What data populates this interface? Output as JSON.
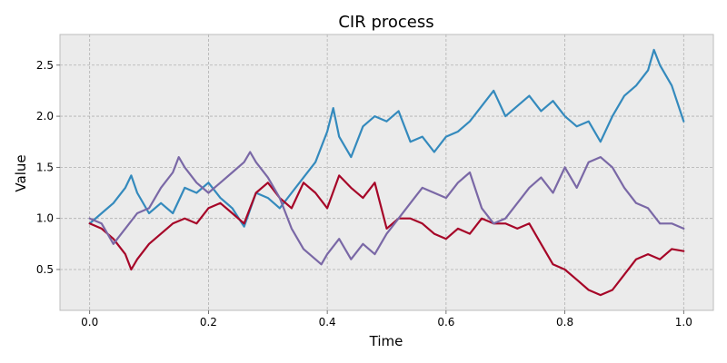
{
  "chart_data": {
    "type": "line",
    "title": "CIR process",
    "xlabel": "Time",
    "ylabel": "Value",
    "xlim": [
      -0.05,
      1.05
    ],
    "ylim": [
      0.1,
      2.8
    ],
    "xticks": [
      0.0,
      0.2,
      0.4,
      0.6,
      0.8,
      1.0
    ],
    "xtick_labels": [
      "0.0",
      "0.2",
      "0.4",
      "0.6",
      "0.8",
      "1.0"
    ],
    "yticks": [
      0.5,
      1.0,
      1.5,
      2.0,
      2.5
    ],
    "ytick_labels": [
      "0.5",
      "1.0",
      "1.5",
      "2.0",
      "2.5"
    ],
    "grid": true,
    "background": "#ebebeb",
    "series": [
      {
        "color": "#348abd",
        "x": [
          0.0,
          0.02,
          0.04,
          0.06,
          0.07,
          0.08,
          0.1,
          0.12,
          0.14,
          0.16,
          0.18,
          0.2,
          0.22,
          0.24,
          0.26,
          0.28,
          0.3,
          0.32,
          0.34,
          0.36,
          0.38,
          0.4,
          0.41,
          0.42,
          0.44,
          0.46,
          0.48,
          0.5,
          0.52,
          0.54,
          0.56,
          0.58,
          0.6,
          0.62,
          0.64,
          0.66,
          0.68,
          0.7,
          0.72,
          0.74,
          0.76,
          0.78,
          0.8,
          0.82,
          0.84,
          0.86,
          0.88,
          0.9,
          0.92,
          0.94,
          0.95,
          0.96,
          0.98,
          1.0
        ],
        "y": [
          0.95,
          1.05,
          1.15,
          1.3,
          1.42,
          1.25,
          1.05,
          1.15,
          1.05,
          1.3,
          1.25,
          1.35,
          1.2,
          1.1,
          0.92,
          1.25,
          1.2,
          1.1,
          1.25,
          1.4,
          1.55,
          1.85,
          2.08,
          1.8,
          1.6,
          1.9,
          2.0,
          1.95,
          2.05,
          1.75,
          1.8,
          1.65,
          1.8,
          1.85,
          1.95,
          2.1,
          2.25,
          2.0,
          2.1,
          2.2,
          2.05,
          2.15,
          2.0,
          1.9,
          1.95,
          1.75,
          2.0,
          2.2,
          2.3,
          2.45,
          2.65,
          2.5,
          2.3,
          1.95
        ]
      },
      {
        "color": "#a60628",
        "x": [
          0.0,
          0.02,
          0.04,
          0.06,
          0.07,
          0.08,
          0.1,
          0.12,
          0.14,
          0.16,
          0.18,
          0.2,
          0.22,
          0.24,
          0.26,
          0.28,
          0.3,
          0.32,
          0.34,
          0.36,
          0.38,
          0.4,
          0.42,
          0.44,
          0.46,
          0.48,
          0.5,
          0.52,
          0.54,
          0.56,
          0.58,
          0.6,
          0.62,
          0.64,
          0.66,
          0.68,
          0.7,
          0.72,
          0.74,
          0.76,
          0.78,
          0.8,
          0.82,
          0.84,
          0.86,
          0.88,
          0.9,
          0.92,
          0.94,
          0.96,
          0.98,
          1.0
        ],
        "y": [
          0.95,
          0.9,
          0.8,
          0.65,
          0.5,
          0.6,
          0.75,
          0.85,
          0.95,
          1.0,
          0.95,
          1.1,
          1.15,
          1.05,
          0.95,
          1.25,
          1.35,
          1.2,
          1.1,
          1.35,
          1.25,
          1.1,
          1.42,
          1.3,
          1.2,
          1.35,
          0.9,
          1.0,
          1.0,
          0.95,
          0.85,
          0.8,
          0.9,
          0.85,
          1.0,
          0.95,
          0.95,
          0.9,
          0.95,
          0.75,
          0.55,
          0.5,
          0.4,
          0.3,
          0.25,
          0.3,
          0.45,
          0.6,
          0.65,
          0.6,
          0.7,
          0.68
        ]
      },
      {
        "color": "#7a68a6",
        "x": [
          0.0,
          0.02,
          0.04,
          0.06,
          0.08,
          0.1,
          0.12,
          0.14,
          0.15,
          0.16,
          0.18,
          0.2,
          0.22,
          0.24,
          0.26,
          0.27,
          0.28,
          0.3,
          0.32,
          0.34,
          0.36,
          0.38,
          0.39,
          0.4,
          0.42,
          0.44,
          0.46,
          0.48,
          0.5,
          0.52,
          0.54,
          0.56,
          0.58,
          0.6,
          0.62,
          0.64,
          0.66,
          0.68,
          0.7,
          0.72,
          0.74,
          0.76,
          0.78,
          0.8,
          0.82,
          0.84,
          0.86,
          0.88,
          0.9,
          0.92,
          0.94,
          0.96,
          0.98,
          1.0
        ],
        "y": [
          1.0,
          0.95,
          0.75,
          0.9,
          1.05,
          1.1,
          1.3,
          1.45,
          1.6,
          1.5,
          1.35,
          1.25,
          1.35,
          1.45,
          1.55,
          1.65,
          1.55,
          1.4,
          1.2,
          0.9,
          0.7,
          0.6,
          0.55,
          0.65,
          0.8,
          0.6,
          0.75,
          0.65,
          0.85,
          1.0,
          1.15,
          1.3,
          1.25,
          1.2,
          1.35,
          1.45,
          1.1,
          0.95,
          1.0,
          1.15,
          1.3,
          1.4,
          1.25,
          1.5,
          1.3,
          1.55,
          1.6,
          1.5,
          1.3,
          1.15,
          1.1,
          0.95,
          0.95,
          0.9
        ]
      }
    ]
  }
}
